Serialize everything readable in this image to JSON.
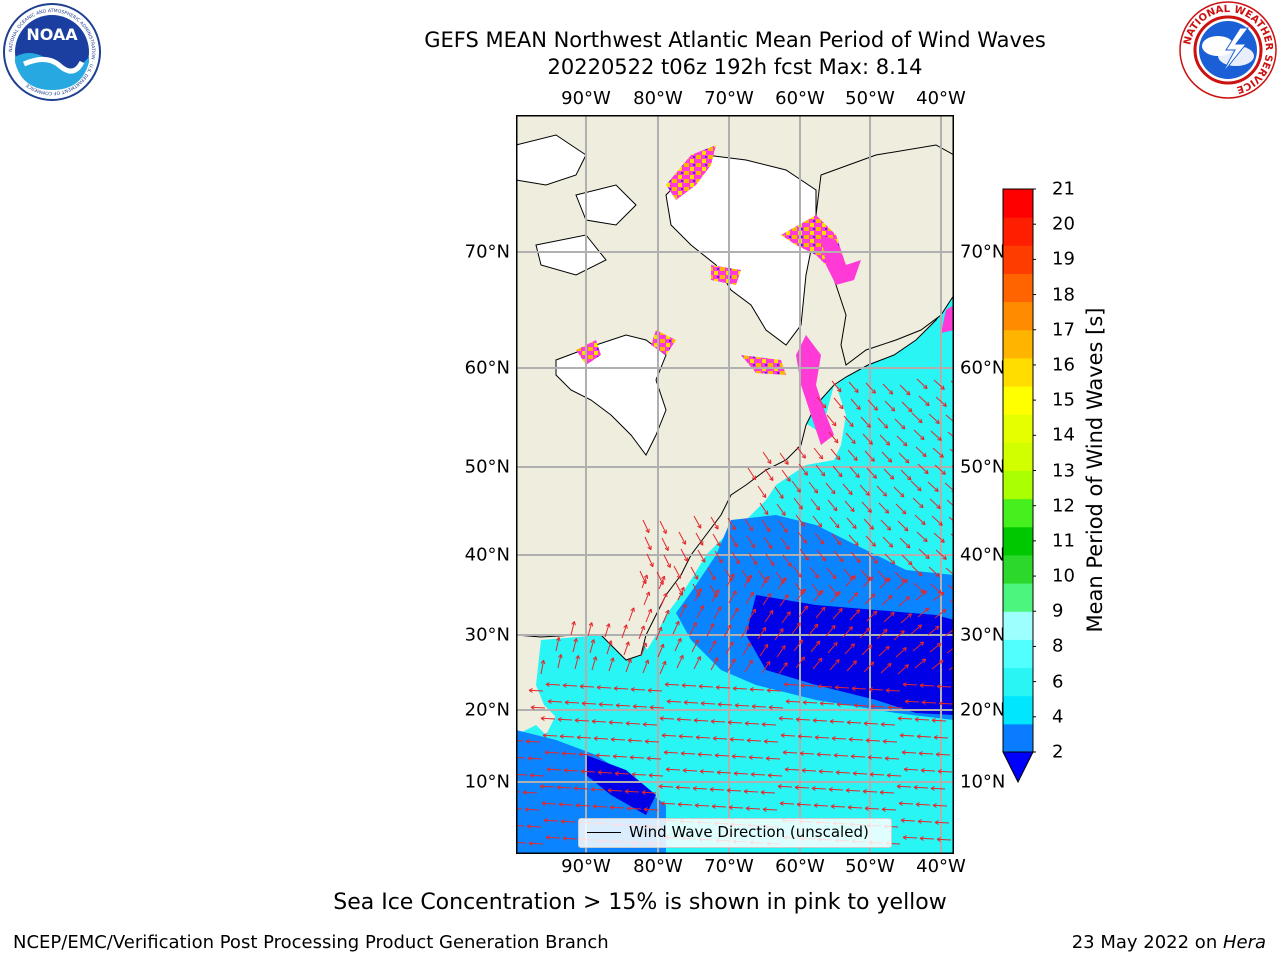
{
  "header": {
    "title_line1": "GEFS MEAN Northwest Atlantic Mean Period of Wind Waves",
    "title_line2": "20220522 t06z 192h fcst   Max: 8.14"
  },
  "logos": {
    "noaa_text": "NOAA",
    "noaa_ring_text": "NATIONAL OCEANIC AND ATMOSPHERIC ADMINISTRATION · U.S. DEPARTMENT OF COMMERCE",
    "nws_ring_text": "NATIONAL WEATHER SERVICE"
  },
  "map": {
    "lon_labels": [
      "90°W",
      "80°W",
      "70°W",
      "60°W",
      "50°W",
      "40°W"
    ],
    "lat_labels": [
      "70°N",
      "60°N",
      "50°N",
      "40°N",
      "30°N",
      "20°N",
      "10°N"
    ],
    "legend_label": "Wind Wave Direction (unscaled)",
    "colors": {
      "land": "#efedde",
      "ice": "#ffffff",
      "ocean_light": "#2af5f5",
      "ocean_blue": "#0a84ff",
      "ocean_dark": "#0000e6",
      "ice_pink": "#ff3ad6",
      "arrow": "#e5272b",
      "grid": "#b0b0b0"
    }
  },
  "colorbar": {
    "label": "Mean Period of Wind Waves [s]",
    "ticks": [
      "2",
      "4",
      "6",
      "8",
      "9",
      "10",
      "11",
      "12",
      "13",
      "14",
      "15",
      "16",
      "17",
      "18",
      "19",
      "20",
      "21"
    ],
    "under_color": "#0000ff",
    "colors": [
      "#0a7cff",
      "#00e6ff",
      "#2af5f5",
      "#52ffff",
      "#9effff",
      "#4cf57e",
      "#2bd82b",
      "#00c800",
      "#46f01e",
      "#aaff00",
      "#d2ff00",
      "#e6ff00",
      "#ffff00",
      "#ffdd00",
      "#ffb400",
      "#ff8c00",
      "#ff6400",
      "#ff3c00",
      "#ff1e00",
      "#ff0000"
    ]
  },
  "notes": {
    "sea_ice": "Sea Ice Concentration > 15% is shown in pink to yellow"
  },
  "footer": {
    "left": "NCEP/EMC/Verification Post Processing Product Generation Branch",
    "date": "23 May 2022 on ",
    "host": "Hera"
  }
}
